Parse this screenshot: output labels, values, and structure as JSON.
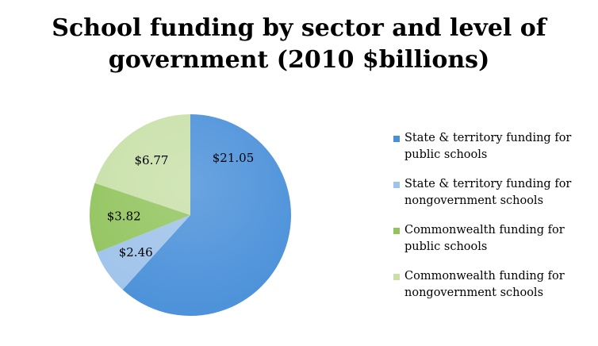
{
  "chart_data": {
    "type": "pie",
    "title": "School funding by sector and level of\ngovernment (2010 $billions)",
    "slices": [
      {
        "label": "State & territory funding for public schools",
        "value": 21.05,
        "value_label": "$21.05",
        "color": "#4a90d9"
      },
      {
        "label": "State & territory funding for nongovernment schools",
        "value": 2.46,
        "value_label": "$2.46",
        "color": "#9fc3ea"
      },
      {
        "label": "Commonwealth funding for public schools",
        "value": 3.82,
        "value_label": "$3.82",
        "color": "#92c45e"
      },
      {
        "label": "Commonwealth funding for nongovernment schools",
        "value": 6.77,
        "value_label": "$6.77",
        "color": "#c8e0a8"
      }
    ],
    "start_angle": "12 o'clock",
    "direction": "clockwise",
    "legend_position": "right"
  }
}
